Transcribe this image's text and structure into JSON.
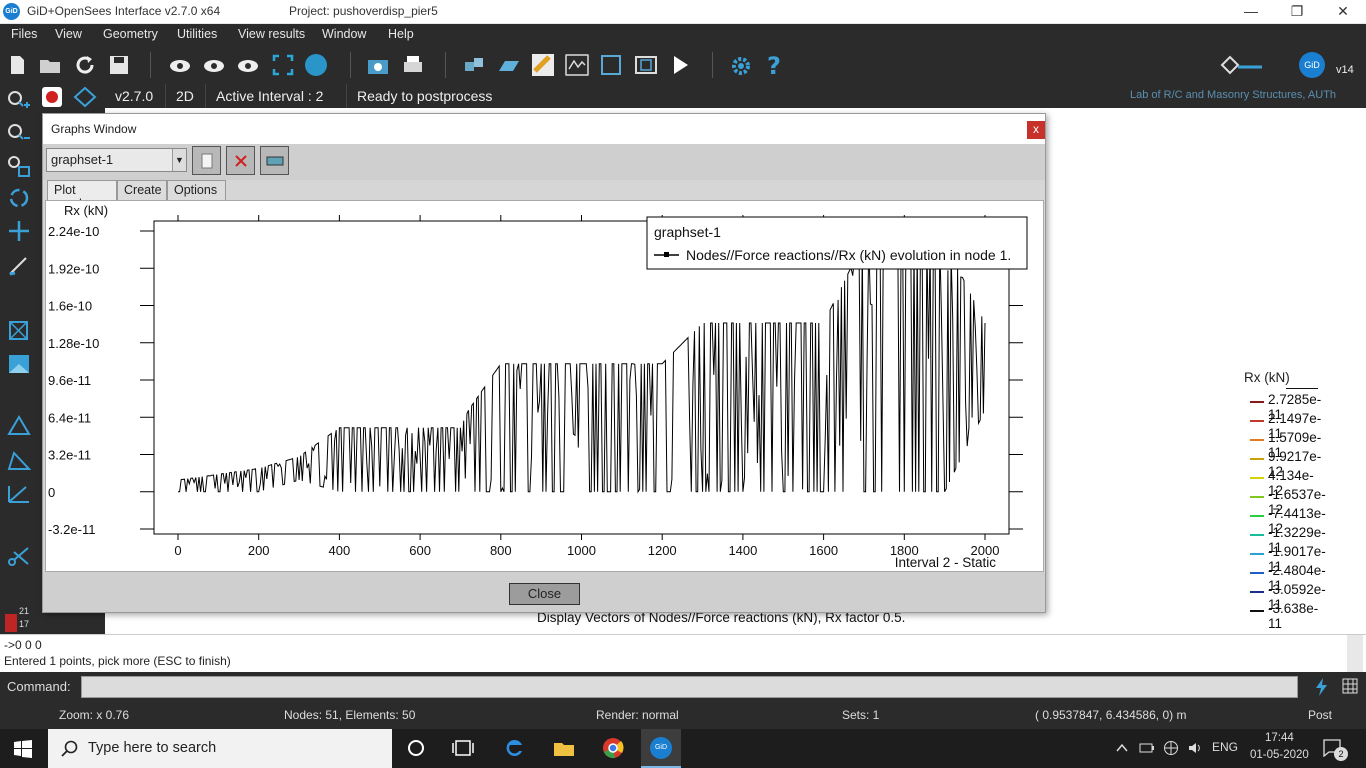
{
  "window": {
    "title": "GiD+OpenSees Interface v2.7.0  x64",
    "project": "Project: pushoverdisp_pier5",
    "logo": "GiD"
  },
  "menu": [
    "Files",
    "View",
    "Geometry",
    "Utilities",
    "View results",
    "Window",
    "Help"
  ],
  "toolbar": {
    "version_label": "v14",
    "gid_logo": "GiD"
  },
  "status": {
    "version": "v2.7.0",
    "mode": "2D",
    "interval": "Active Interval :  2",
    "state": "Ready to postprocess",
    "lab": "Lab of R/C and Masonry Structures, AUTh"
  },
  "sidebar_numbers": [
    "21",
    "17"
  ],
  "graphs_window": {
    "title": "Graphs Window",
    "close_glyph": "x",
    "graphset": "graphset-1",
    "tabs": [
      "Plot graph",
      "Create",
      "Options"
    ],
    "close_button": "Close"
  },
  "chart_data": {
    "type": "line",
    "ylabel": "Rx (kN)",
    "xlabel": "Interval 2 - Static",
    "x_ticks": [
      "0",
      "200",
      "400",
      "600",
      "800",
      "1000",
      "1200",
      "1400",
      "1600",
      "1800",
      "2000"
    ],
    "y_ticks": [
      "2.24e-10",
      "1.92e-10",
      "1.6e-10",
      "1.28e-10",
      "9.6e-11",
      "6.4e-11",
      "3.2e-11",
      "0",
      "-3.2e-11"
    ],
    "xlim": [
      0,
      2000
    ],
    "ylim": [
      -3.2e-11,
      2.24e-10
    ],
    "legend_title": "graphset-1",
    "series": [
      {
        "name": "Nodes//Force reactions//Rx (kN) evolution in node 1.",
        "envelope_x": [
          0,
          100,
          200,
          300,
          400,
          500,
          600,
          700,
          720,
          800,
          900,
          1000,
          1100,
          1200,
          1300,
          1400,
          1450,
          1500,
          1600,
          1700,
          1800,
          1900,
          2000
        ],
        "envelope_low": [
          0,
          0,
          0,
          1e-11,
          0,
          0,
          0,
          0,
          0,
          0,
          0,
          0,
          0,
          0,
          0,
          0,
          0,
          0,
          0,
          0,
          0,
          0,
          7e-11
        ],
        "envelope_high": [
          1e-11,
          1.5e-11,
          2e-11,
          3e-11,
          5.5e-11,
          5.5e-11,
          5.5e-11,
          5.5e-11,
          7e-11,
          1.1e-10,
          1.1e-10,
          1.1e-10,
          1.1e-10,
          1.1e-10,
          1.45e-10,
          1.45e-10,
          1.45e-10,
          1.45e-10,
          1.45e-10,
          2.15e-10,
          2.15e-10,
          2.15e-10,
          1.45e-10
        ],
        "color": "#000000"
      }
    ],
    "grid": false,
    "legend_placement": "top-right"
  },
  "contour_legend": {
    "title": "Rx (kN)",
    "entries": [
      {
        "value": "2.7285e-11",
        "color": "#8b1a1a"
      },
      {
        "value": "2.1497e-11",
        "color": "#c0392b"
      },
      {
        "value": "1.5709e-11",
        "color": "#e07b20"
      },
      {
        "value": "9.9217e-12",
        "color": "#c9a10a"
      },
      {
        "value": "4.134e-12",
        "color": "#d4d400"
      },
      {
        "value": "-1.6537e-12",
        "color": "#7ec820"
      },
      {
        "value": "-7.4413e-12",
        "color": "#2ecc40"
      },
      {
        "value": "-1.3229e-11",
        "color": "#1abc9c"
      },
      {
        "value": "-1.9017e-11",
        "color": "#2b9fd6"
      },
      {
        "value": "-2.4804e-11",
        "color": "#1f5fbf"
      },
      {
        "value": "-3.0592e-11",
        "color": "#1b2f8a"
      },
      {
        "value": "-3.638e-11",
        "color": "#111111"
      }
    ]
  },
  "display_vectors": "Display Vectors of Nodes//Force reactions (kN), Rx factor 0.5.",
  "command_output": {
    "line1": "->0 0 0",
    "line2": "Entered 1 points, pick more (ESC to finish)"
  },
  "command": {
    "label": "Command:",
    "value": ""
  },
  "info": {
    "zoom": "Zoom: x 0.76",
    "nodes": "Nodes: 51, Elements: 50",
    "render": "Render: normal",
    "sets": "Sets: 1",
    "coords": "( 0.9537847,  6.434586,  0)  m",
    "mode": "Post"
  },
  "taskbar": {
    "search_placeholder": "Type here to search",
    "lang": "ENG",
    "time": "17:44",
    "date": "01-05-2020",
    "notifications": "2"
  }
}
